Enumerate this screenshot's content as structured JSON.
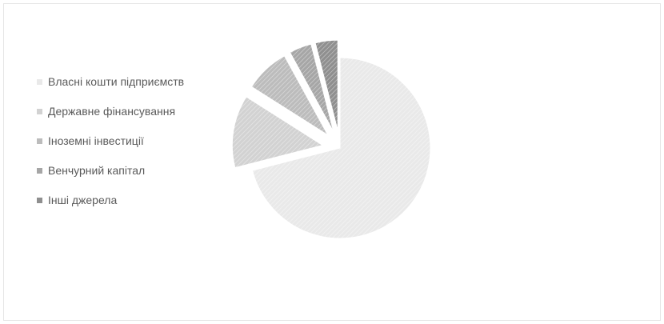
{
  "chart_data": {
    "type": "pie",
    "title": "",
    "exploded": true,
    "legend_position": "left",
    "slices": [
      {
        "label": "Власні кошти підприємств",
        "value": 71,
        "color": "#e9e9e9"
      },
      {
        "label": "Державне фінансування",
        "value": 13,
        "color": "#d2d2d2"
      },
      {
        "label": "Іноземні інвестиції",
        "value": 8,
        "color": "#bcbcbc"
      },
      {
        "label": "Венчурний капітал",
        "value": 4,
        "color": "#a6a6a6"
      },
      {
        "label": "Інші джерела",
        "value": 4,
        "color": "#8f8f8f"
      }
    ]
  }
}
